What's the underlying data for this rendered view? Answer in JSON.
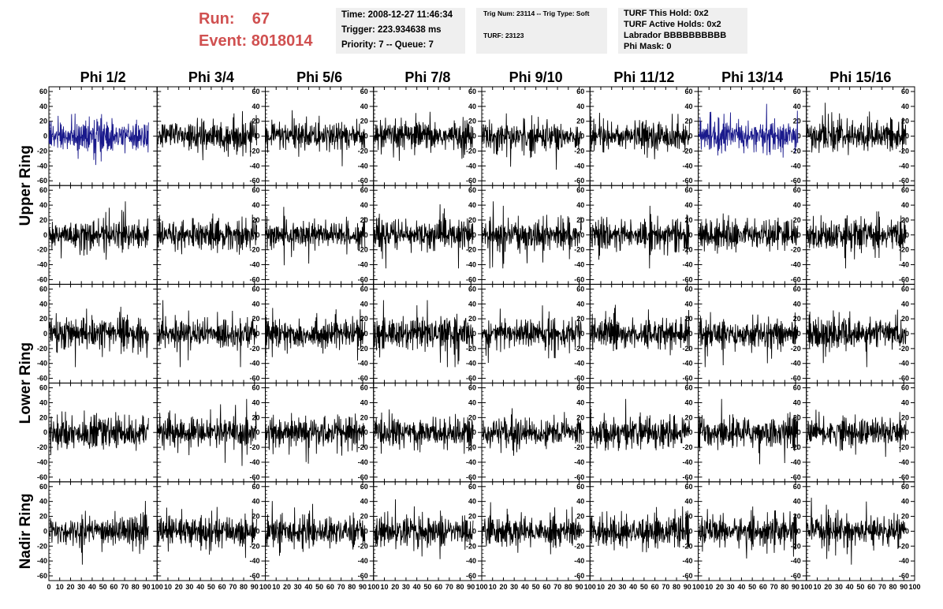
{
  "header": {
    "run_label": "Run:",
    "run_value": "67",
    "event_label": "Event:",
    "event_value": "8018014",
    "info_time": "Time: 2008-12-27 11:46:34",
    "info_trigger": "Trigger: 223.934638 ms",
    "info_priority": "Priority: 7 -- Queue: 7",
    "info_trig": "Trig Num: 23114 -- Trig Type: Soft",
    "info_turf": "TURF: 23123",
    "info_hold": "TURF This Hold: 0x2",
    "info_active": "TURF Active Holds: 0x2",
    "info_labrador": "Labrador BBBBBBBBBB",
    "info_phimask": "Phi Mask: 0"
  },
  "chart_data": {
    "type": "line",
    "columns": [
      "Phi 1/2",
      "Phi 3/4",
      "Phi 5/6",
      "Phi 7/8",
      "Phi 9/10",
      "Phi 11/12",
      "Phi 13/14",
      "Phi 15/16"
    ],
    "rows": [
      "Upper Ring",
      "",
      "Lower Ring",
      "",
      "Nadir Ring"
    ],
    "row_labels_shown": [
      {
        "label": "Upper Ring",
        "spans_rows": [
          0,
          1
        ]
      },
      {
        "label": "Lower Ring",
        "spans_rows": [
          2,
          3
        ]
      },
      {
        "label": "Nadir Ring",
        "spans_rows": [
          4
        ]
      }
    ],
    "xlim": [
      0,
      100
    ],
    "ylim": [
      -60,
      60
    ],
    "x_ticks": [
      0,
      10,
      20,
      30,
      40,
      50,
      60,
      70,
      80,
      90,
      100
    ],
    "x_tick_labels": [
      "0",
      "10",
      "20",
      "30",
      "40",
      "50",
      "60",
      "70",
      "80",
      "90",
      "100"
    ],
    "y_ticks": [
      -60,
      -40,
      -20,
      0,
      20,
      40,
      60
    ],
    "y_tick_labels": [
      "-60",
      "-40",
      "-20",
      "0",
      "20",
      "40",
      "60"
    ],
    "series_color_default": "#000000",
    "series_color_highlight": "#1a1a8c",
    "highlighted_panels": [
      [
        0,
        0
      ],
      [
        0,
        6
      ]
    ],
    "points_per_trace": 260,
    "typical_amplitude": 18,
    "peak_amplitude": 45
  }
}
